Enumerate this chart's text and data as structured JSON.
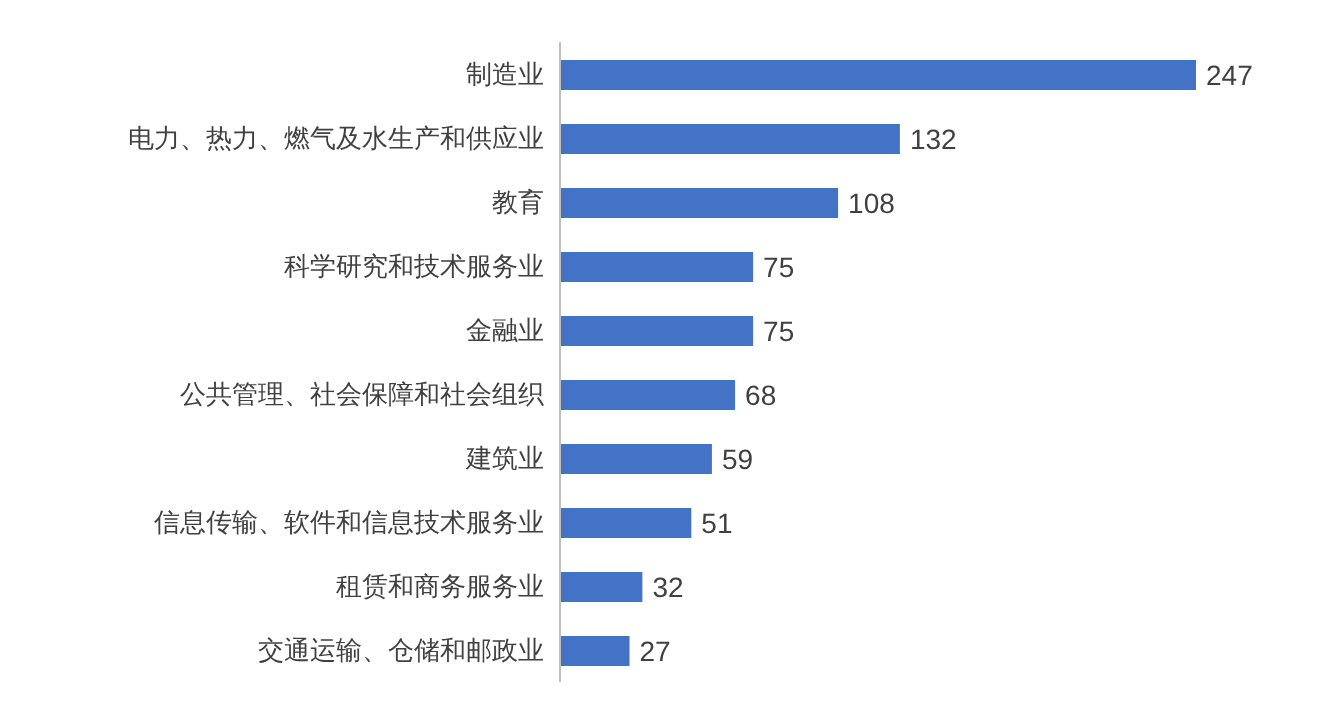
{
  "chart_data": {
    "type": "bar",
    "orientation": "horizontal",
    "data_labels": true,
    "grid": false,
    "legend": false,
    "categories": [
      "制造业",
      "电力、热力、燃气及水生产和供应业",
      "教育",
      "科学研究和技术服务业",
      "金融业",
      "公共管理、社会保障和社会组织",
      "建筑业",
      "信息传输、软件和信息技术服务业",
      "租赁和商务服务业",
      "交通运输、仓储和邮政业"
    ],
    "values": [
      247,
      132,
      108,
      75,
      75,
      68,
      59,
      51,
      32,
      27
    ],
    "color": "#4472c4"
  }
}
